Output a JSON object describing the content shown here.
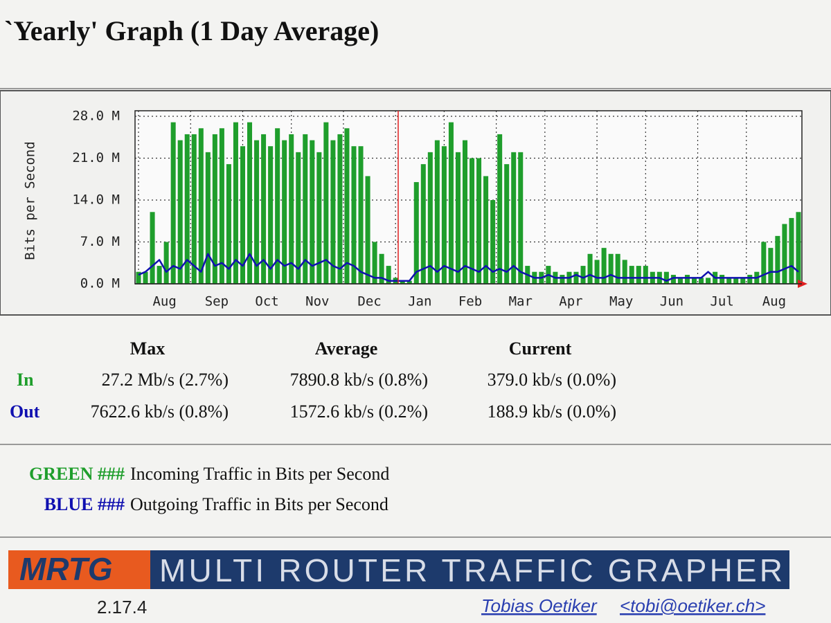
{
  "page": {
    "title": "`Yearly' Graph (1 Day Average)"
  },
  "chart_data": {
    "type": "bar",
    "ylabel": "Bits per Second",
    "xlim": [
      0,
      96
    ],
    "xticks": [
      {
        "value": 0.5,
        "label": "Aug"
      },
      {
        "value": 8,
        "label": "Sep"
      },
      {
        "value": 15.5,
        "label": "Oct"
      },
      {
        "value": 22.5,
        "label": "Nov"
      },
      {
        "value": 30,
        "label": "Dec"
      },
      {
        "value": 37.5,
        "label": "Jan"
      },
      {
        "value": 44.5,
        "label": "Feb"
      },
      {
        "value": 52,
        "label": "Mar"
      },
      {
        "value": 59,
        "label": "Apr"
      },
      {
        "value": 66.5,
        "label": "May"
      },
      {
        "value": 73.5,
        "label": "Jun"
      },
      {
        "value": 81,
        "label": "Jul"
      },
      {
        "value": 88,
        "label": "Aug"
      }
    ],
    "ylim": [
      0,
      28
    ],
    "yticks": [
      {
        "value": 0,
        "label": "0.0 M"
      },
      {
        "value": 7,
        "label": "7.0 M"
      },
      {
        "value": 14,
        "label": "14.0 M"
      },
      {
        "value": 21,
        "label": "21.0 M"
      },
      {
        "value": 28,
        "label": "28.0 M"
      }
    ],
    "grid": true,
    "series": [
      {
        "name": "In",
        "color": "#1f9e2c",
        "values": [
          2,
          2,
          12,
          3,
          7,
          27,
          24,
          25,
          25,
          26,
          22,
          25,
          26,
          20,
          27,
          23,
          27,
          24,
          25,
          23,
          26,
          24,
          25,
          22,
          25,
          24,
          22,
          27,
          24,
          25,
          26,
          23,
          23,
          18,
          7,
          5,
          3,
          1,
          0.5,
          0.5,
          17,
          20,
          22,
          24,
          23,
          27,
          22,
          24,
          21,
          21,
          18,
          14,
          25,
          20,
          22,
          22,
          3,
          2,
          2,
          3,
          2,
          1.5,
          2,
          2,
          3,
          5,
          4,
          6,
          5,
          5,
          4,
          3,
          3,
          3,
          2,
          2,
          2,
          1.5,
          1,
          1.5,
          1,
          1,
          1,
          2,
          1.5,
          1,
          1,
          1,
          1.5,
          2,
          7,
          6,
          8,
          10,
          11,
          12
        ]
      },
      {
        "name": "Out",
        "color": "#1010b0",
        "values": [
          1.5,
          2,
          3,
          4,
          2,
          3,
          2.5,
          4,
          3,
          2,
          5,
          3,
          3.5,
          2.5,
          4,
          3,
          5,
          3,
          4,
          2.5,
          4,
          3,
          3.5,
          2.5,
          4,
          3,
          3.5,
          4,
          3,
          2.5,
          3.5,
          3,
          2,
          1.5,
          1,
          1,
          0.5,
          0.5,
          0.5,
          0.5,
          2,
          2.5,
          3,
          2,
          3,
          2.5,
          2,
          3,
          2.5,
          2,
          3,
          2,
          2.5,
          2,
          3,
          2,
          1.5,
          1,
          1,
          1.5,
          1,
          1,
          1,
          1.5,
          1,
          1.5,
          1,
          1,
          1.5,
          1,
          1,
          1,
          1,
          1,
          1,
          1,
          0.5,
          1,
          1,
          1,
          1,
          1,
          2,
          1,
          1,
          1,
          1,
          1,
          1,
          1,
          1.5,
          2,
          2,
          2.5,
          3,
          2
        ]
      }
    ]
  },
  "stats": {
    "headers": [
      "Max",
      "Average",
      "Current"
    ],
    "rows": [
      {
        "label": "In",
        "cells": [
          "27.2 Mb/s (2.7%)",
          "7890.8 kb/s (0.8%)",
          "379.0 kb/s (0.0%)"
        ]
      },
      {
        "label": "Out",
        "cells": [
          "7622.6 kb/s (0.8%)",
          "1572.6 kb/s (0.2%)",
          "188.9 kb/s (0.0%)"
        ]
      }
    ]
  },
  "legend": [
    {
      "key": "GREEN ###",
      "text": "Incoming Traffic in Bits per Second"
    },
    {
      "key": "BLUE ###",
      "text": "Outgoing Traffic in Bits per Second"
    }
  ],
  "footer": {
    "logo": "MRTG",
    "banner": "MULTI ROUTER TRAFFIC GRAPHER",
    "version": "2.17.4",
    "author": "Tobias Oetiker",
    "email": "<tobi@oetiker.ch>"
  }
}
